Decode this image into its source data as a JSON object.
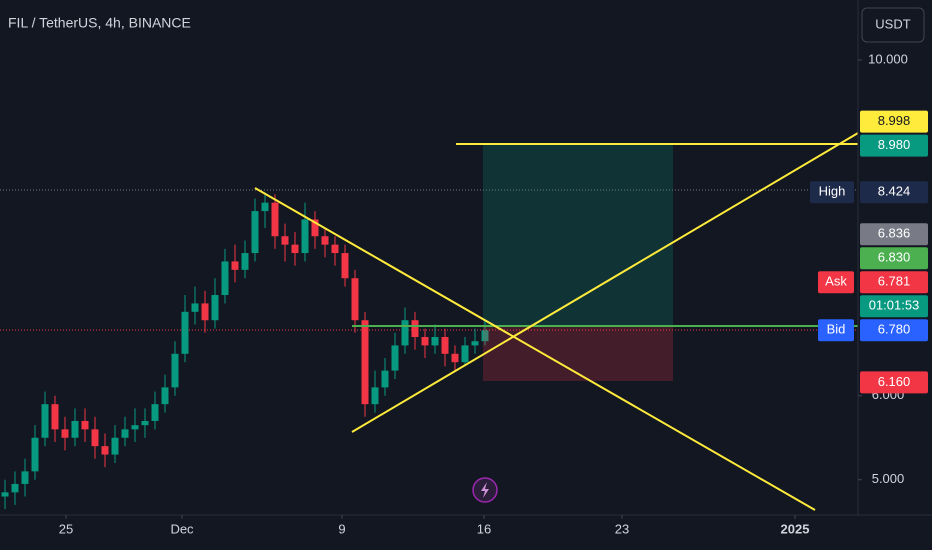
{
  "chart_data": {
    "type": "candlestick",
    "title": "FIL / TetherUS, 4h, BINANCE",
    "currency_button": "USDT",
    "up_color": "#089981",
    "down_color": "#f23645",
    "open": [
      4.8,
      4.85,
      4.95,
      5.1,
      5.5,
      5.9,
      5.6,
      5.5,
      5.7,
      5.6,
      5.4,
      5.3,
      5.5,
      5.6,
      5.65,
      5.7,
      5.9,
      6.1,
      6.5,
      7.0,
      7.1,
      6.9,
      7.2,
      7.6,
      7.5,
      7.7,
      8.2,
      8.3,
      7.9,
      7.8,
      7.7,
      8.1,
      7.9,
      7.8,
      7.7,
      7.4,
      6.9,
      5.9,
      6.1,
      6.3,
      6.6,
      6.9,
      6.7,
      6.6,
      6.7,
      6.5,
      6.4,
      6.6,
      6.65
    ],
    "high": [
      5.0,
      5.1,
      5.25,
      5.65,
      6.05,
      6.0,
      5.75,
      5.85,
      5.85,
      5.75,
      5.55,
      5.65,
      5.75,
      5.85,
      5.85,
      6.05,
      6.25,
      6.65,
      7.2,
      7.3,
      7.25,
      7.4,
      7.75,
      7.8,
      7.85,
      8.35,
      8.424,
      8.4,
      8.05,
      7.95,
      8.3,
      8.2,
      8.0,
      7.9,
      7.8,
      7.5,
      7.0,
      6.3,
      6.45,
      6.75,
      7.05,
      7.0,
      6.8,
      6.85,
      6.8,
      6.6,
      6.7,
      6.8,
      6.9
    ],
    "low": [
      4.65,
      4.7,
      4.8,
      5.0,
      5.4,
      5.45,
      5.35,
      5.4,
      5.45,
      5.25,
      5.15,
      5.2,
      5.4,
      5.45,
      5.5,
      5.6,
      5.8,
      6.0,
      6.4,
      6.85,
      6.75,
      6.8,
      7.1,
      7.35,
      7.4,
      7.6,
      8.0,
      7.75,
      7.6,
      7.55,
      7.6,
      7.75,
      7.65,
      7.55,
      7.3,
      6.75,
      5.75,
      5.8,
      6.0,
      6.2,
      6.5,
      6.55,
      6.45,
      6.5,
      6.35,
      6.3,
      6.35,
      6.5,
      6.6
    ],
    "close": [
      4.85,
      4.95,
      5.1,
      5.5,
      5.9,
      5.6,
      5.5,
      5.7,
      5.6,
      5.4,
      5.3,
      5.5,
      5.6,
      5.65,
      5.7,
      5.9,
      6.1,
      6.5,
      7.0,
      7.1,
      6.9,
      7.2,
      7.6,
      7.5,
      7.7,
      8.2,
      8.3,
      7.9,
      7.8,
      7.7,
      8.1,
      7.9,
      7.8,
      7.7,
      7.4,
      6.9,
      5.9,
      6.1,
      6.3,
      6.6,
      6.9,
      6.7,
      6.6,
      6.7,
      6.5,
      6.4,
      6.6,
      6.65,
      6.78
    ],
    "xlim": [
      -0.5,
      85.3
    ],
    "xticks": [
      {
        "value": 6.1,
        "label": "25"
      },
      {
        "value": 17.7,
        "label": "Dec"
      },
      {
        "value": 33.7,
        "label": "9"
      },
      {
        "value": 47.9,
        "label": "16"
      },
      {
        "value": 61.7,
        "label": "23"
      },
      {
        "value": 79,
        "label": "2025"
      }
    ],
    "ylim": [
      4.58,
      10.714
    ],
    "yticks": [
      {
        "value": 10,
        "label": "10.000"
      },
      {
        "value": 6,
        "label": "6.000"
      },
      {
        "value": 5,
        "label": "5.000"
      }
    ],
    "price_labels": [
      {
        "value": 8.998,
        "label": "8.998",
        "color": "#ffeb3b",
        "text_color": "#131722"
      },
      {
        "value": 8.98,
        "label": "8.980",
        "color": "#089981",
        "text_color": "#ffffff"
      },
      {
        "value": 8.424,
        "label": "8.424",
        "tag": "High",
        "color": "#1e2a4a",
        "text_color": "#ffffff"
      },
      {
        "value": 6.836,
        "label": "6.836",
        "color": "#787b86",
        "text_color": "#ffffff"
      },
      {
        "value": 6.83,
        "label": "6.830",
        "color": "#4caf50",
        "text_color": "#ffffff"
      },
      {
        "value": 6.781,
        "label": "6.781",
        "tag": "Ask",
        "color": "#f23645",
        "text_color": "#ffffff"
      },
      {
        "value": 6.78,
        "label": "6.780",
        "tag": "Bid",
        "color": "#2962ff",
        "text_color": "#ffffff"
      },
      {
        "value": 6.78,
        "label": "01:01:53",
        "color": "#089981",
        "text_color": "#ffffff"
      },
      {
        "value": 6.16,
        "label": "6.160",
        "color": "#f23645",
        "text_color": "#ffffff"
      }
    ]
  }
}
